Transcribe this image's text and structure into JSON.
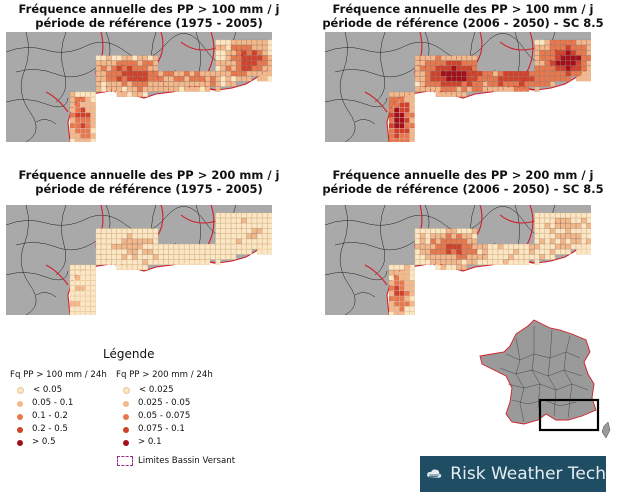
{
  "panels": [
    {
      "id": "p100-ref",
      "line1": "Fréquence annuelle des PP > 100 mm / j",
      "line2": "période de référence (1975 - 2005)"
    },
    {
      "id": "p100-fut",
      "line1": "Fréquence annuelle des PP > 100 mm / j",
      "line2": "période de référence (2006 - 2050) - SC 8.5"
    },
    {
      "id": "p200-ref",
      "line1": "Fréquence annuelle des PP > 200 mm / j",
      "line2": "période de référence (1975 - 2005)"
    },
    {
      "id": "p200-fut",
      "line1": "Fréquence annuelle des PP > 200 mm / j",
      "line2": "période de référence (2006 - 2050) - SC 8.5"
    }
  ],
  "legend": {
    "title": "Légende",
    "col100": {
      "header": "Fq PP > 100 mm / 24h",
      "items": [
        "< 0.05",
        "0.05 - 0.1",
        "0.1 - 0.2",
        "0.2 - 0.5",
        "> 0.5"
      ]
    },
    "col200": {
      "header": "Fq PP > 200 mm / 24h",
      "items": [
        "< 0.025",
        "0.025 - 0.05",
        "0.05 - 0.075",
        "0.075 - 0.1",
        "> 0.1"
      ]
    },
    "class_colors": [
      "#fbe6c6",
      "#f3b98a",
      "#e8794c",
      "#d1422b",
      "#a3101b"
    ],
    "basin_label": "Limites Bassin Versant",
    "basin_color": "#9b2a8b"
  },
  "brand": {
    "name": "Risk Weather Tech",
    "background": "#1f4e64",
    "icon": "cloud-icon"
  },
  "colors": {
    "land": "#a9a9a9",
    "boundary": "#d11f2a",
    "sea": "#ffffff"
  }
}
